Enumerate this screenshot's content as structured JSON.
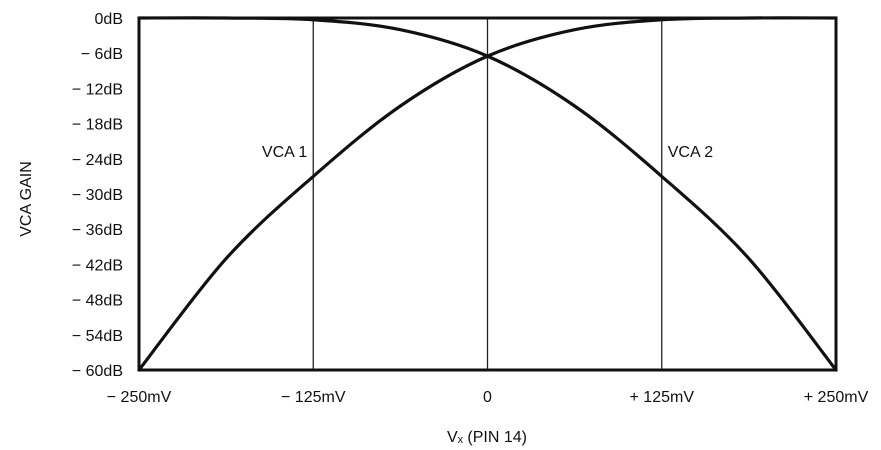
{
  "chart_data": {
    "type": "line",
    "title": "",
    "xlabel": "Vₓ (PIN 14)",
    "ylabel": "VCA GAIN",
    "x_unit": "mV",
    "y_unit": "dB",
    "xlim": [
      -250,
      250
    ],
    "ylim": [
      -60,
      0
    ],
    "grid": "vertical",
    "legend": "none",
    "x_ticks": [
      {
        "value": -250,
        "label": "− 250mV"
      },
      {
        "value": -125,
        "label": "− 125mV"
      },
      {
        "value": 0,
        "label": "0"
      },
      {
        "value": 125,
        "label": "+ 125mV"
      },
      {
        "value": 250,
        "label": "+ 250mV"
      }
    ],
    "y_ticks": [
      {
        "value": 0,
        "label": "0dB"
      },
      {
        "value": -6,
        "label": "− 6dB"
      },
      {
        "value": -12,
        "label": "− 12dB"
      },
      {
        "value": -18,
        "label": "− 18dB"
      },
      {
        "value": -24,
        "label": "− 24dB"
      },
      {
        "value": -30,
        "label": "− 30dB"
      },
      {
        "value": -36,
        "label": "− 36dB"
      },
      {
        "value": -42,
        "label": "− 42dB"
      },
      {
        "value": -48,
        "label": "− 48dB"
      },
      {
        "value": -54,
        "label": "− 54dB"
      },
      {
        "value": -60,
        "label": "− 60dB"
      }
    ],
    "series": [
      {
        "name": "VCA 1",
        "x": [
          -250,
          -187.5,
          -125,
          -62.5,
          0,
          62.5,
          125,
          187.5,
          250
        ],
        "y": [
          -60,
          -41,
          -27,
          -15,
          -6.5,
          -2,
          -0.3,
          0,
          0
        ]
      },
      {
        "name": "VCA 2",
        "x": [
          -250,
          -187.5,
          -125,
          -62.5,
          0,
          62.5,
          125,
          187.5,
          250
        ],
        "y": [
          0,
          0,
          -0.3,
          -2,
          -6.5,
          -15,
          -27,
          -41,
          -60
        ]
      }
    ],
    "series_labels": [
      {
        "series": "VCA 1",
        "text": "VCA 1",
        "x": -125,
        "y": -24
      },
      {
        "series": "VCA 2",
        "text": "VCA 2",
        "x": 125,
        "y": -24
      }
    ],
    "colors": {
      "line": "#111111",
      "grid": "#222222",
      "frame": "#111111"
    }
  }
}
